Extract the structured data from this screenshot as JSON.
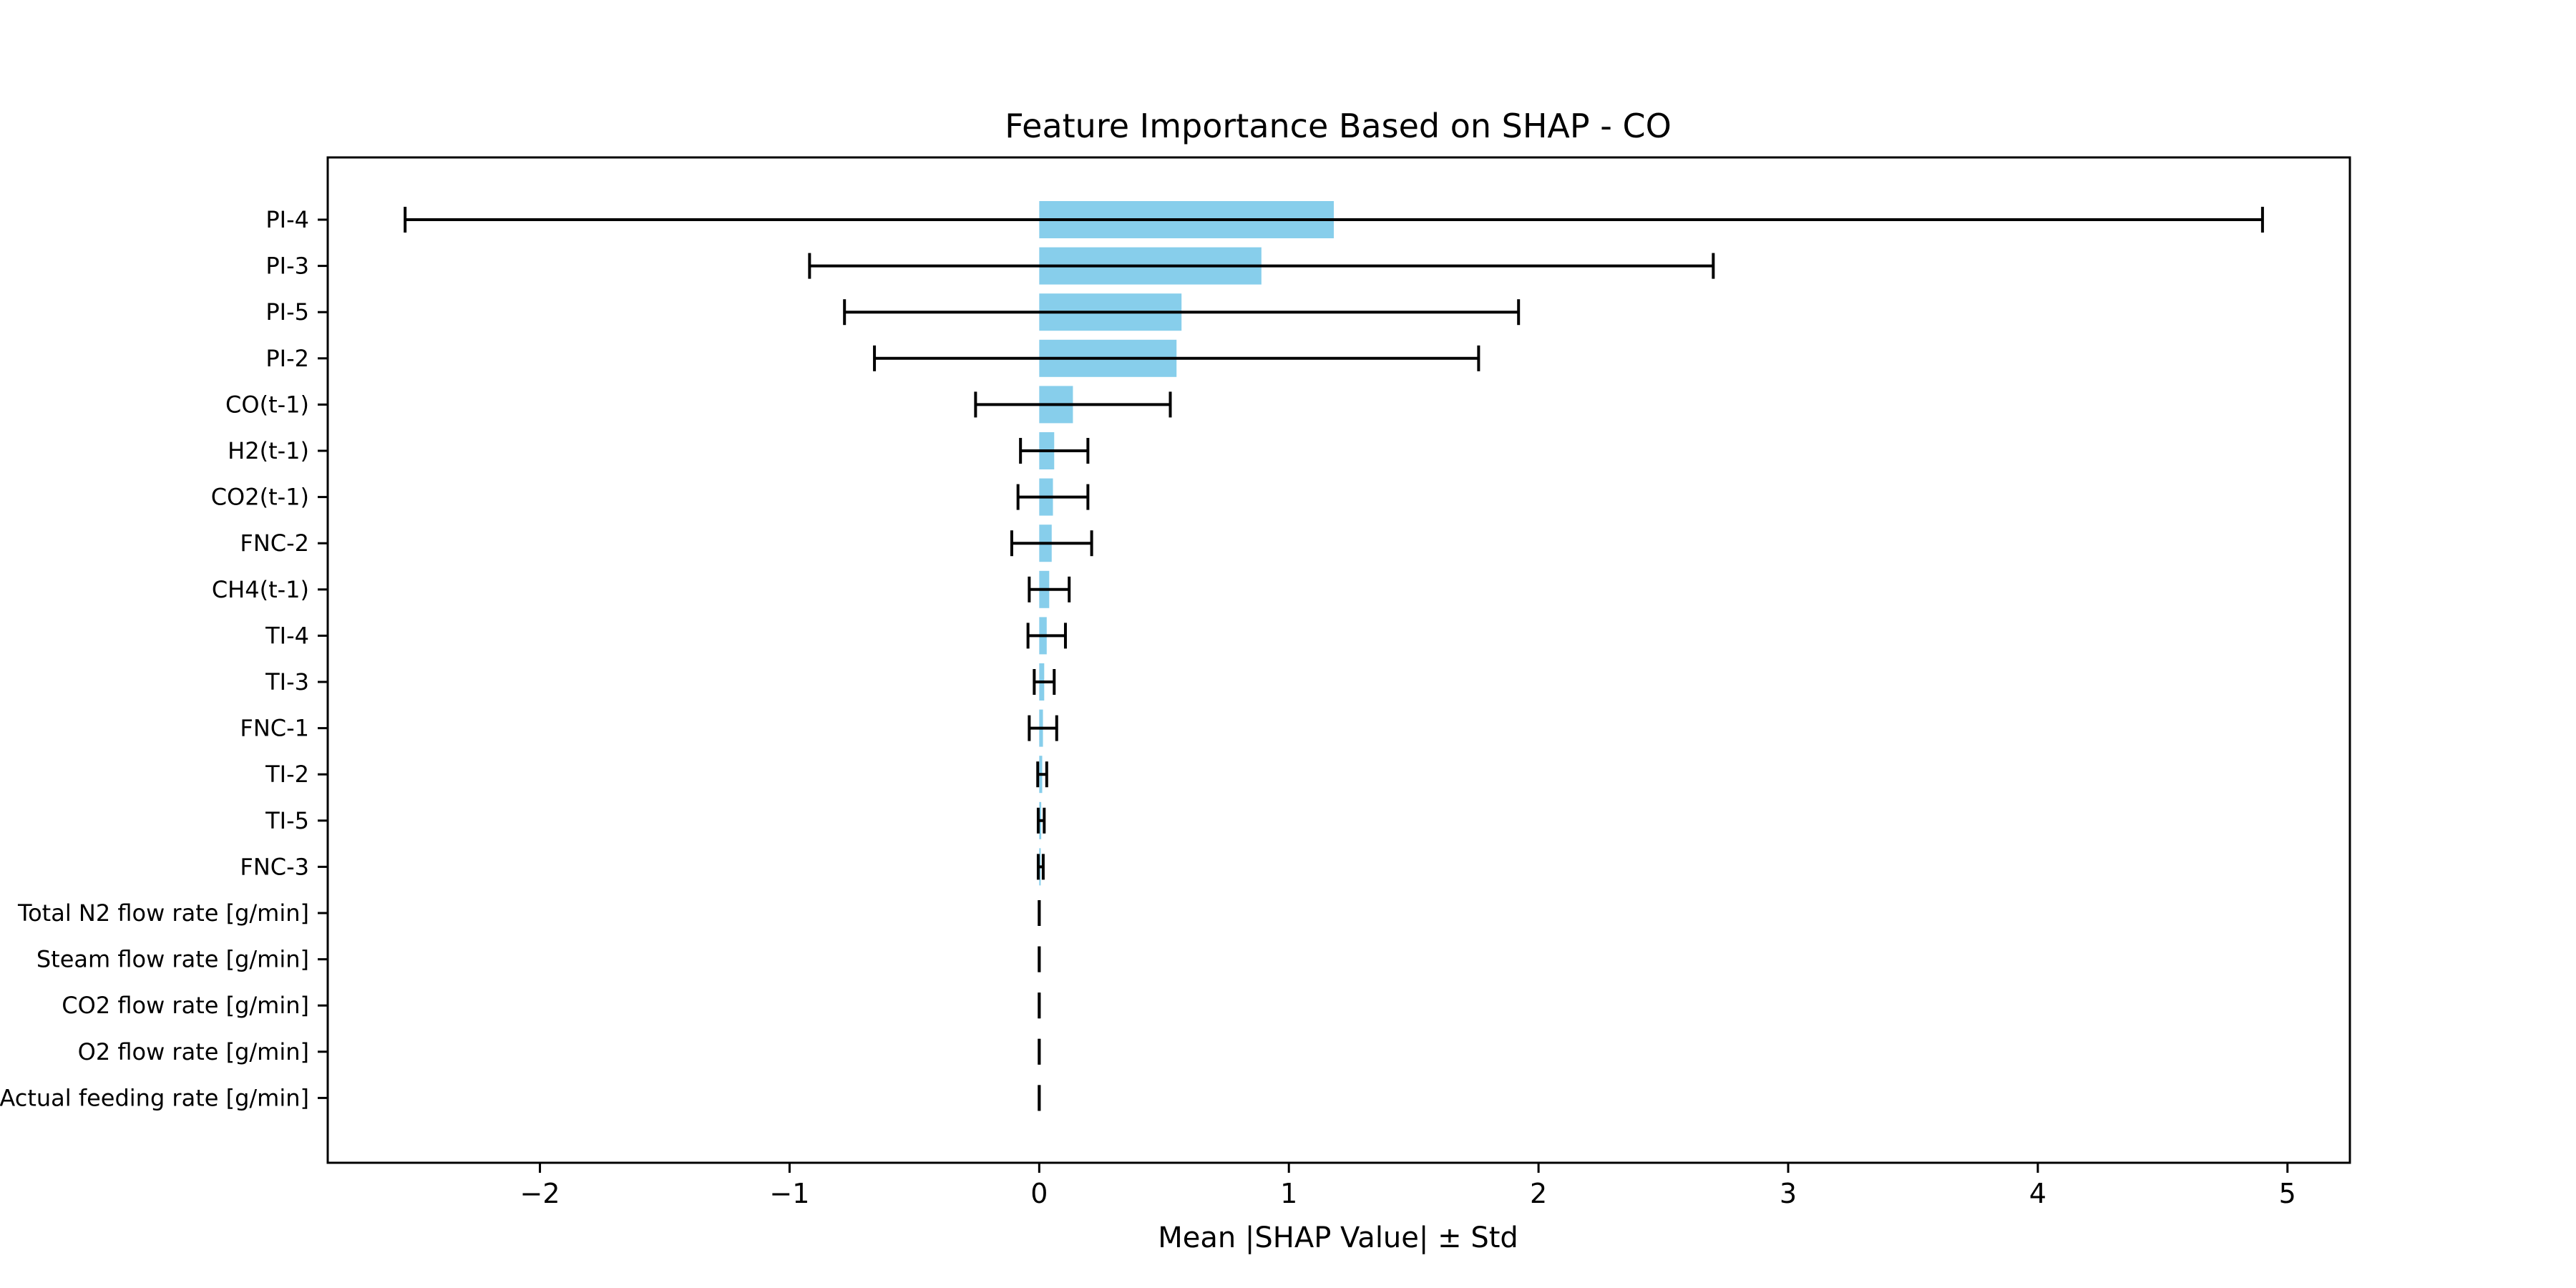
{
  "chart_data": {
    "type": "bar",
    "orientation": "horizontal",
    "title": "Feature Importance Based on SHAP - CO",
    "xlabel": "Mean |SHAP Value| ± Std",
    "ylabel": "",
    "xlim": [
      -2.85,
      5.25
    ],
    "xticks": [
      -2,
      -1,
      0,
      1,
      2,
      3,
      4,
      5
    ],
    "xtick_labels": [
      "−2",
      "−1",
      "0",
      "1",
      "2",
      "3",
      "4",
      "5"
    ],
    "grid": false,
    "bar_color": "#87CEEB",
    "errorbar_color": "#000000",
    "categories": [
      "PI-4",
      "PI-3",
      "PI-5",
      "PI-2",
      "CO(t-1)",
      "H2(t-1)",
      "CO2(t-1)",
      "FNC-2",
      "CH4(t-1)",
      "TI-4",
      "TI-3",
      "FNC-1",
      "TI-2",
      "TI-5",
      "FNC-3",
      "Total N2 flow rate [g/min]",
      "Steam flow rate [g/min]",
      "CO2 flow rate [g/min]",
      "O2 flow rate [g/min]",
      "Actual feeding rate [g/min]"
    ],
    "values": [
      1.18,
      0.89,
      0.57,
      0.55,
      0.135,
      0.06,
      0.055,
      0.05,
      0.04,
      0.03,
      0.02,
      0.015,
      0.012,
      0.008,
      0.006,
      0.0,
      0.0,
      0.0,
      0.0,
      0.0
    ],
    "std": [
      3.72,
      1.81,
      1.35,
      1.21,
      0.39,
      0.135,
      0.14,
      0.16,
      0.08,
      0.075,
      0.04,
      0.055,
      0.018,
      0.012,
      0.01,
      0.0,
      0.0,
      0.0,
      0.0,
      0.0
    ]
  }
}
